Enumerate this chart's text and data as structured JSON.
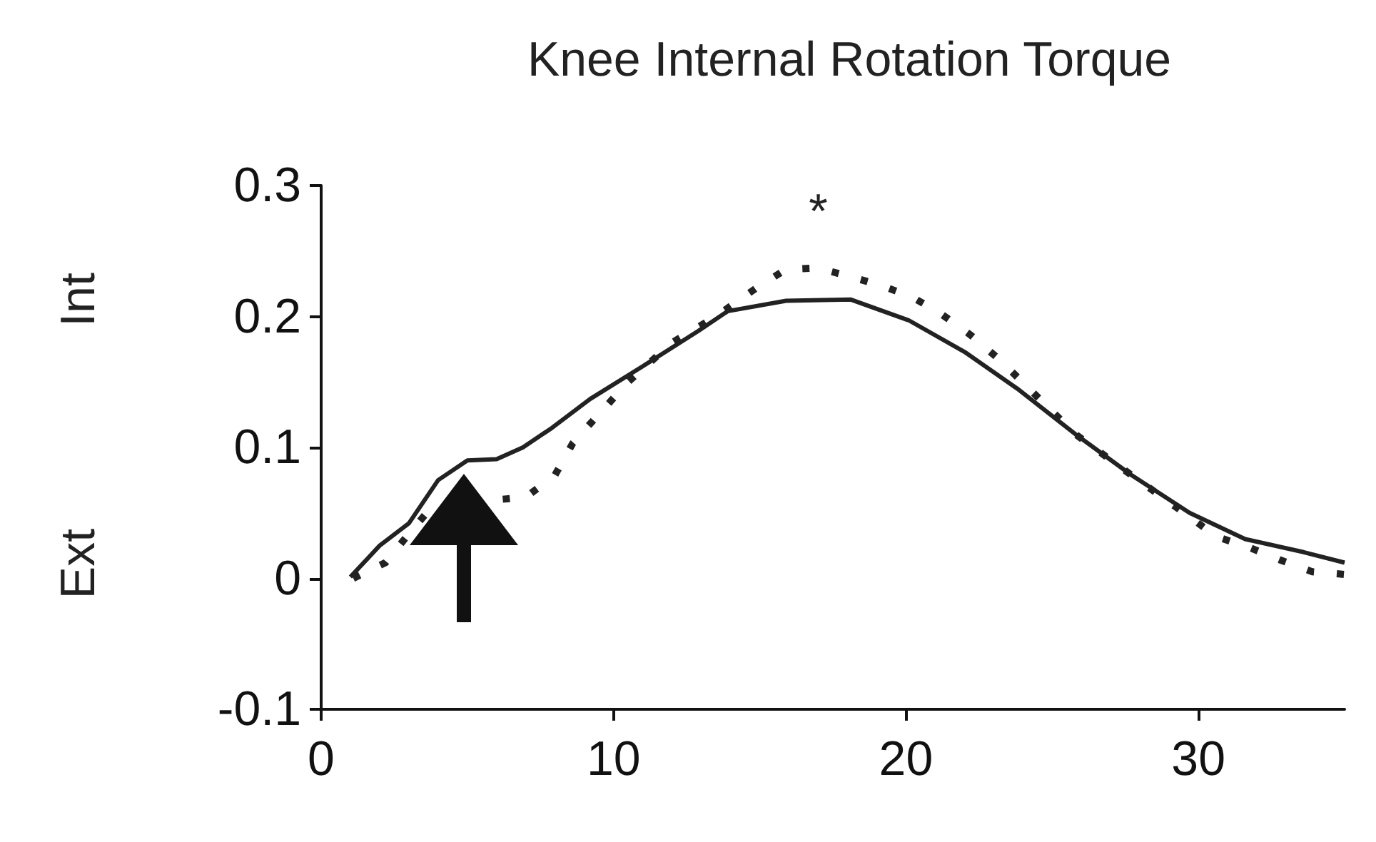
{
  "chart_data": {
    "type": "line",
    "title": "Knee Internal Rotation Torque",
    "annotations": [
      "Int",
      "Ext",
      "*"
    ],
    "xlim": [
      0,
      35
    ],
    "xticks": [
      0,
      10,
      20,
      30
    ],
    "ylim": [
      -0.1,
      0.3
    ],
    "yticks": [
      -0.1,
      0,
      0.1,
      0.2,
      0.3
    ],
    "grid": false,
    "marker": "none",
    "series": [
      {
        "color": "#222222",
        "line_style": "solid",
        "x": [
          1,
          2,
          3,
          4,
          5,
          6,
          6.9,
          7.9,
          9.2,
          11,
          12.9,
          13.9,
          15.9,
          18.1,
          20.1,
          22,
          23.8,
          25.8,
          27.7,
          29.7,
          31.6,
          33.6,
          35
        ],
        "values": [
          0.001,
          0.025,
          0.042,
          0.075,
          0.09,
          0.091,
          0.1,
          0.115,
          0.137,
          0.162,
          0.189,
          0.204,
          0.212,
          0.213,
          0.197,
          0.173,
          0.145,
          0.11,
          0.079,
          0.05,
          0.03,
          0.02,
          0.012
        ]
      },
      {
        "color": "#222222",
        "line_style": "dotted",
        "x": [
          1.1,
          2.2,
          3,
          3.8,
          6,
          7,
          8,
          8.6,
          9.4,
          10.5,
          12,
          13.5,
          14.9,
          15.9,
          17,
          18,
          19.1,
          20.2,
          21.2,
          22.2,
          23.2,
          25.8,
          27.7,
          29.7,
          30.6,
          31.8,
          32.8,
          33.9,
          35
        ],
        "values": [
          0,
          0.012,
          0.034,
          0.055,
          0.06,
          0.062,
          0.079,
          0.103,
          0.123,
          0.15,
          0.18,
          0.2,
          0.222,
          0.236,
          0.237,
          0.231,
          0.224,
          0.215,
          0.202,
          0.186,
          0.167,
          0.11,
          0.079,
          0.047,
          0.032,
          0.023,
          0.014,
          0.005,
          0.003
        ]
      }
    ]
  }
}
